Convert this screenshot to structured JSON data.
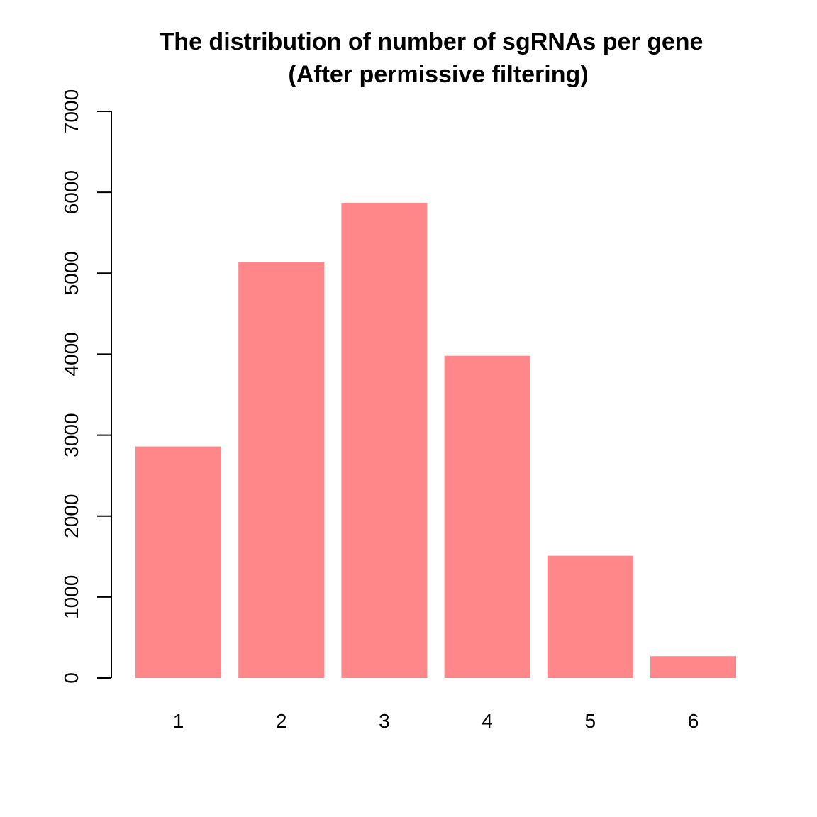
{
  "chart_data": {
    "type": "bar",
    "title_line1": "The distribution of number of sgRNAs per gene",
    "title_line2": "(After permissive filtering)",
    "xlabel": "",
    "ylabel": "",
    "categories": [
      "1",
      "2",
      "3",
      "4",
      "5",
      "6"
    ],
    "values": [
      2860,
      5140,
      5870,
      3980,
      1510,
      270
    ],
    "ylim": [
      0,
      7000
    ],
    "yticks": [
      "0",
      "1000",
      "2000",
      "3000",
      "4000",
      "5000",
      "6000",
      "7000"
    ],
    "bar_color": "#FF8789",
    "grid": false,
    "legend": "none"
  }
}
